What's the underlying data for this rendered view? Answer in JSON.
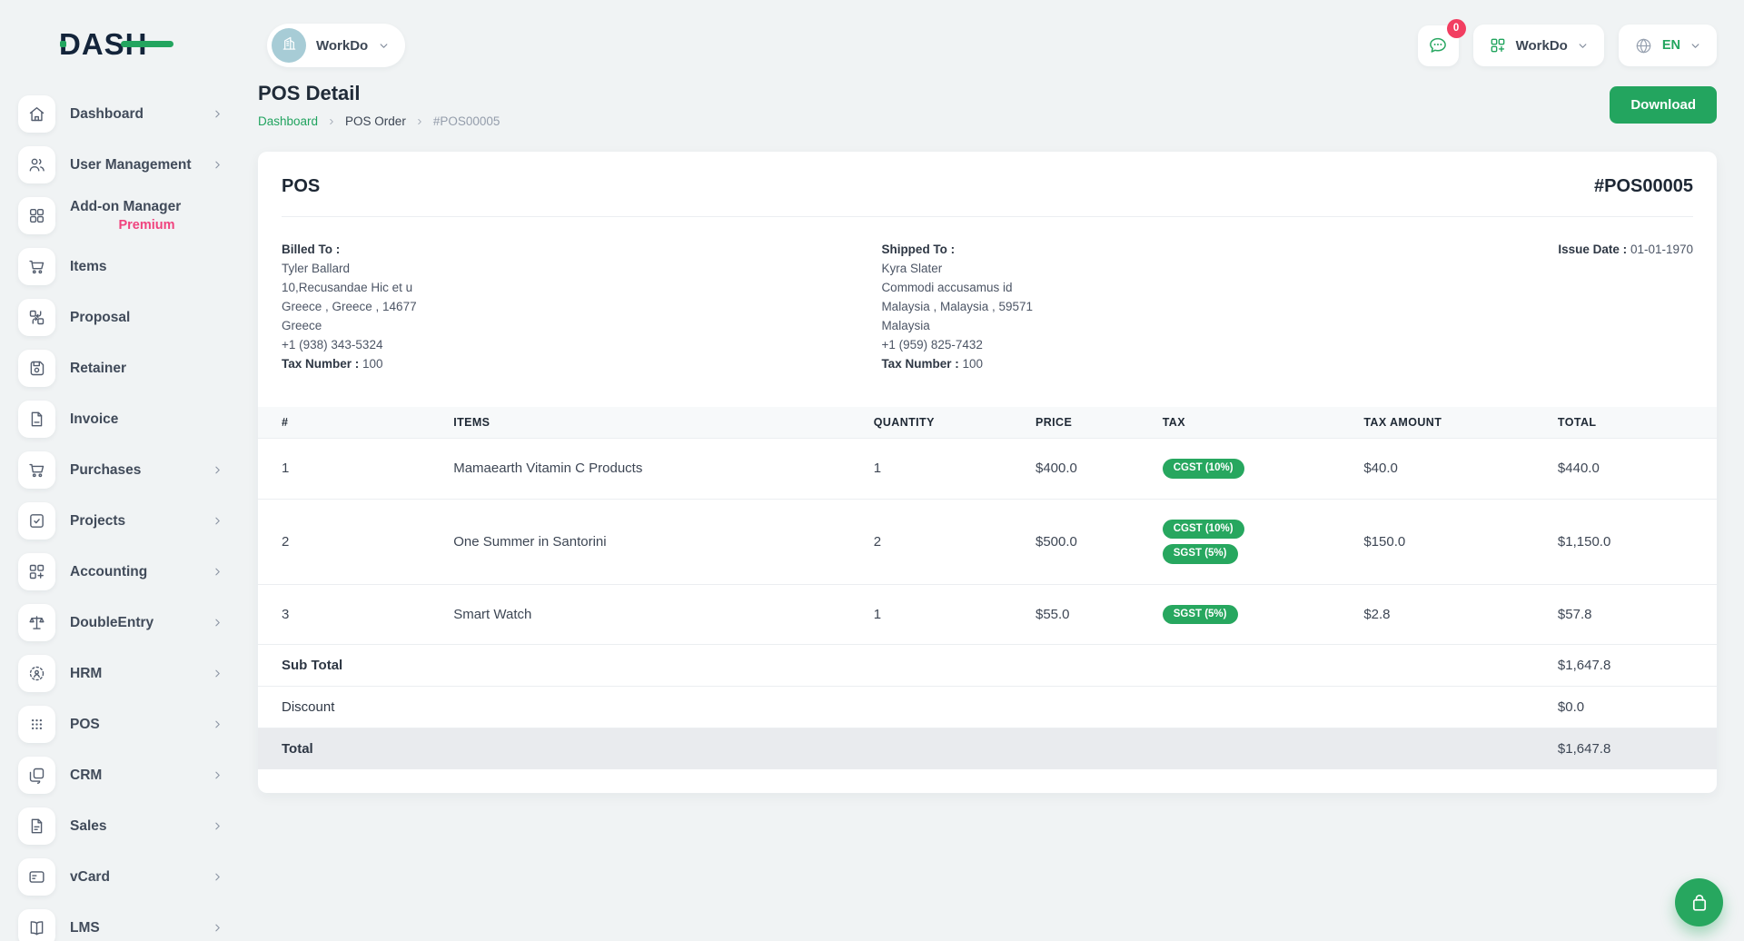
{
  "brand": {
    "logo_text": "DASH"
  },
  "colors": {
    "primary_green": "#23A55F",
    "badge_green": "#27A75F",
    "premium_pink": "#F0437E",
    "notification_red": "#F23E61",
    "avatar_teal": "#A7CCD6",
    "logo_navy": "#13243A"
  },
  "sidebar": {
    "items": [
      {
        "label": "Dashboard",
        "icon": "home",
        "chevron": true
      },
      {
        "label": "User Management",
        "icon": "users",
        "chevron": true
      },
      {
        "label": "Add-on Manager",
        "sub": "Premium",
        "icon": "addon",
        "chevron": false
      },
      {
        "label": "Items",
        "icon": "cart",
        "chevron": false
      },
      {
        "label": "Proposal",
        "icon": "proposal",
        "chevron": false
      },
      {
        "label": "Retainer",
        "icon": "retainer",
        "chevron": false
      },
      {
        "label": "Invoice",
        "icon": "invoice",
        "chevron": false
      },
      {
        "label": "Purchases",
        "icon": "cart",
        "chevron": true
      },
      {
        "label": "Projects",
        "icon": "projects",
        "chevron": true
      },
      {
        "label": "Accounting",
        "icon": "accounting",
        "chevron": true
      },
      {
        "label": "DoubleEntry",
        "icon": "scale",
        "chevron": true
      },
      {
        "label": "HRM",
        "icon": "hrm",
        "chevron": true
      },
      {
        "label": "POS",
        "icon": "pos",
        "chevron": true
      },
      {
        "label": "CRM",
        "icon": "crm",
        "chevron": true
      },
      {
        "label": "Sales",
        "icon": "sales",
        "chevron": true
      },
      {
        "label": "vCard",
        "icon": "vcard",
        "chevron": true
      },
      {
        "label": "LMS",
        "icon": "lms",
        "chevron": true
      }
    ]
  },
  "topbar": {
    "workspace": {
      "name": "WorkDo"
    },
    "chat_badge": "0",
    "org": {
      "name": "WorkDo"
    },
    "language": {
      "code": "EN"
    }
  },
  "page": {
    "title": "POS Detail",
    "breadcrumb": [
      "Dashboard",
      "POS Order",
      "#POS00005"
    ],
    "download_label": "Download"
  },
  "pos": {
    "card_title": "POS",
    "number": "#POS00005",
    "issue_date_label": "Issue Date :",
    "issue_date": "01-01-1970",
    "billed_to": {
      "heading": "Billed To :",
      "lines": [
        "Tyler Ballard",
        "10,Recusandae Hic et u",
        "Greece , Greece , 14677",
        "Greece",
        "+1 (938) 343-5324"
      ],
      "tax_label": "Tax Number :",
      "tax_value": "100"
    },
    "shipped_to": {
      "heading": "Shipped To :",
      "lines": [
        "Kyra Slater",
        "Commodi accusamus id",
        "Malaysia , Malaysia , 59571",
        "Malaysia",
        "+1 (959) 825-7432"
      ],
      "tax_label": "Tax Number :",
      "tax_value": "100"
    },
    "table": {
      "headers": [
        "#",
        "ITEMS",
        "QUANTITY",
        "PRICE",
        "TAX",
        "TAX AMOUNT",
        "TOTAL"
      ],
      "rows": [
        {
          "no": "1",
          "item": "Mamaearth Vitamin C Products",
          "qty": "1",
          "price": "$400.0",
          "taxes": [
            "CGST (10%)"
          ],
          "tax_amount": "$40.0",
          "total": "$440.0"
        },
        {
          "no": "2",
          "item": "One Summer in Santorini",
          "qty": "2",
          "price": "$500.0",
          "taxes": [
            "CGST (10%)",
            "SGST (5%)"
          ],
          "tax_amount": "$150.0",
          "total": "$1,150.0"
        },
        {
          "no": "3",
          "item": "Smart Watch",
          "qty": "1",
          "price": "$55.0",
          "taxes": [
            "SGST (5%)"
          ],
          "tax_amount": "$2.8",
          "total": "$57.8"
        }
      ],
      "summary": [
        {
          "label": "Sub Total",
          "value": "$1,647.8",
          "bold": true,
          "highlight": false
        },
        {
          "label": "Discount",
          "value": "$0.0",
          "bold": false,
          "highlight": false
        },
        {
          "label": "Total",
          "value": "$1,647.8",
          "bold": true,
          "highlight": true
        }
      ]
    }
  }
}
